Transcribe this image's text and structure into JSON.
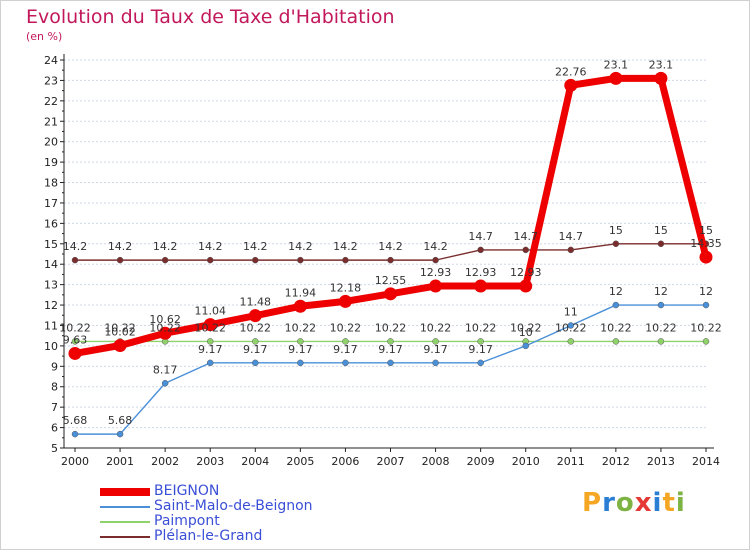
{
  "header": {
    "title": "Evolution du Taux de Taxe d'Habitation",
    "subtitle": "(en %)"
  },
  "logo": {
    "text": "Proxiti",
    "colors": [
      "#f5a623",
      "#2a7fd4",
      "#7cb342",
      "#e53935",
      "#2a7fd4",
      "#f5a623",
      "#7cb342"
    ]
  },
  "colors": {
    "background": "#ffffff",
    "grid": "#cfd8e8",
    "axis": "#222222",
    "tick_text": "#222222",
    "label_text": "#333333"
  },
  "chart_data": {
    "type": "line",
    "title": "Evolution du Taux de Taxe d'Habitation",
    "subtitle": "(en %)",
    "x": [
      "2000",
      "2001",
      "2002",
      "2003",
      "2004",
      "2005",
      "2006",
      "2007",
      "2008",
      "2009",
      "2010",
      "2011",
      "2012",
      "2013",
      "2014"
    ],
    "yticks": [
      "5",
      "6",
      "7",
      "8",
      "9",
      "10",
      "11",
      "12",
      "13",
      "14",
      "15",
      "16",
      "17",
      "18",
      "19",
      "20",
      "21",
      "22",
      "23",
      "24"
    ],
    "ylim": [
      5,
      24
    ],
    "grid": "horizontal",
    "legend_position": "bottom-left",
    "series": [
      {
        "name": "Plélan-le-Grand",
        "color": "#7b2d2d",
        "values": [
          14.2,
          14.2,
          14.2,
          14.2,
          14.2,
          14.2,
          14.2,
          14.2,
          14.2,
          14.7,
          14.7,
          14.7,
          15,
          15,
          15
        ],
        "labels": [
          "14.2",
          "14.2",
          "14.2",
          "14.2",
          "14.2",
          "14.2",
          "14.2",
          "14.2",
          "14.2",
          "14.7",
          "14.7",
          "14.7",
          "15",
          "15",
          "15"
        ]
      },
      {
        "name": "Paimpont",
        "color": "#8fd16a",
        "values": [
          10.22,
          10.22,
          10.22,
          10.22,
          10.22,
          10.22,
          10.22,
          10.22,
          10.22,
          10.22,
          10.22,
          10.22,
          10.22,
          10.22,
          10.22
        ],
        "labels": [
          "10.22",
          "10.22",
          "10.22",
          "10.22",
          "10.22",
          "10.22",
          "10.22",
          "10.22",
          "10.22",
          "10.22",
          "10.22",
          "10.22",
          "10.22",
          "10.22",
          "10.22"
        ]
      },
      {
        "name": "Saint-Malo-de-Beignon",
        "color": "#4a90d9",
        "values": [
          5.68,
          5.68,
          8.17,
          9.17,
          9.17,
          9.17,
          9.17,
          9.17,
          9.17,
          9.17,
          10,
          11,
          12,
          12,
          12
        ],
        "labels": [
          "5.68",
          "5.68",
          "8.17",
          "9.17",
          "9.17",
          "9.17",
          "9.17",
          "9.17",
          "9.17",
          "9.17",
          "10",
          "11",
          "12",
          "12",
          "12"
        ]
      },
      {
        "name": "BEIGNON",
        "color": "#ee0000",
        "values": [
          9.63,
          10.02,
          10.62,
          11.04,
          11.48,
          11.94,
          12.18,
          12.55,
          12.93,
          12.93,
          12.93,
          22.76,
          23.1,
          23.1,
          14.35
        ],
        "labels": [
          "9.63",
          "10.02",
          "10.62",
          "11.04",
          "11.48",
          "11.94",
          "12.18",
          "12.55",
          "12.93",
          "12.93",
          "12.93",
          "22.76",
          "23.1",
          "23.1",
          "14.35"
        ]
      }
    ],
    "legend_order": [
      "BEIGNON",
      "Saint-Malo-de-Beignon",
      "Paimpont",
      "Plélan-le-Grand"
    ]
  }
}
